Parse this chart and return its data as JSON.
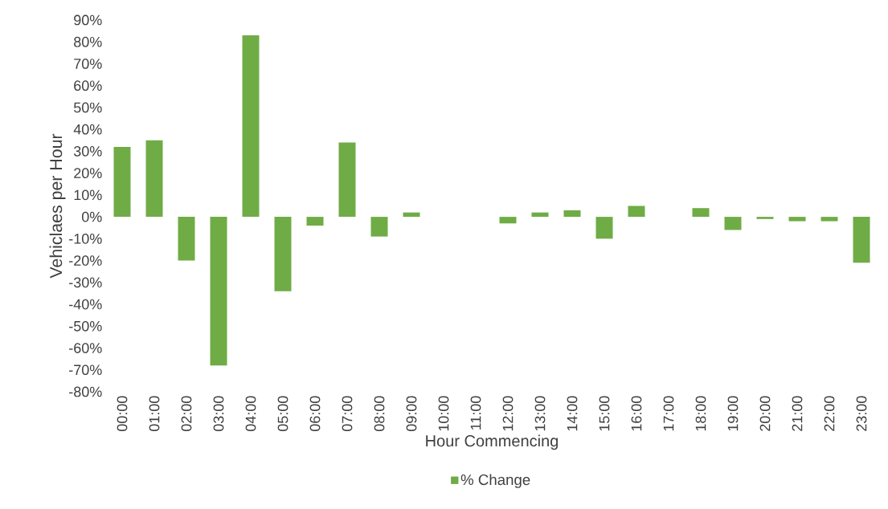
{
  "chart_data": {
    "type": "bar",
    "xlabel": "Hour Commencing",
    "ylabel": "Vehiclaes per Hour",
    "categories": [
      "00:00",
      "01:00",
      "02:00",
      "03:00",
      "04:00",
      "05:00",
      "06:00",
      "07:00",
      "08:00",
      "09:00",
      "10:00",
      "11:00",
      "12:00",
      "13:00",
      "14:00",
      "15:00",
      "16:00",
      "17:00",
      "18:00",
      "19:00",
      "20:00",
      "21:00",
      "22:00",
      "23:00"
    ],
    "series": [
      {
        "name": "% Change",
        "color": "#6fac46",
        "values": [
          32,
          35,
          -20,
          -68,
          83,
          -34,
          -4,
          34,
          -9,
          2,
          0,
          0,
          -3,
          2,
          3,
          -10,
          5,
          0,
          4,
          -6,
          -1,
          -2,
          -2,
          -21
        ]
      }
    ],
    "ylim": [
      -80,
      90
    ],
    "yticks": [
      {
        "value": -80,
        "label": "-80%"
      },
      {
        "value": -70,
        "label": "-70%"
      },
      {
        "value": -60,
        "label": "-60%"
      },
      {
        "value": -50,
        "label": "-50%"
      },
      {
        "value": -40,
        "label": "-40%"
      },
      {
        "value": -30,
        "label": "-30%"
      },
      {
        "value": -20,
        "label": "-20%"
      },
      {
        "value": -10,
        "label": "-10%"
      },
      {
        "value": 0,
        "label": "0%"
      },
      {
        "value": 10,
        "label": "10%"
      },
      {
        "value": 20,
        "label": "20%"
      },
      {
        "value": 30,
        "label": "30%"
      },
      {
        "value": 40,
        "label": "40%"
      },
      {
        "value": 50,
        "label": "50%"
      },
      {
        "value": 60,
        "label": "60%"
      },
      {
        "value": 70,
        "label": "70%"
      },
      {
        "value": 80,
        "label": "80%"
      },
      {
        "value": 90,
        "label": "90%"
      }
    ],
    "legend": "bottom"
  }
}
